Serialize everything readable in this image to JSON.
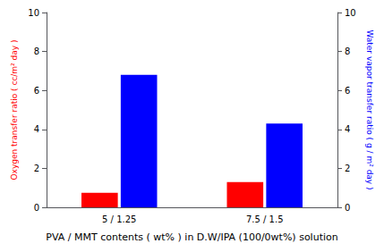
{
  "chart_data": {
    "type": "bar",
    "categories": [
      "5 / 1.25",
      "7.5 / 1.5"
    ],
    "series": [
      {
        "color": "#ff0000",
        "values": [
          0.75,
          1.3
        ]
      },
      {
        "color": "#0000ff",
        "values": [
          6.8,
          4.3
        ],
        "axis": "y2"
      }
    ],
    "xlabel": "PVA / MMT contents ( wt% ) in D.W/IPA (100/0wt%) solution",
    "ylabel": "Oxygen transfer ratio ( cc/m² day )",
    "y2label": "Water vapor transfer ratio ( g / m² day )",
    "ylim": [
      0,
      10
    ],
    "yticks": [
      0,
      2,
      4,
      6,
      8,
      10
    ],
    "y2lim": [
      0,
      10
    ],
    "y2ticks": [
      0,
      2,
      4,
      6,
      8,
      10
    ],
    "grid": false,
    "legend": false
  }
}
